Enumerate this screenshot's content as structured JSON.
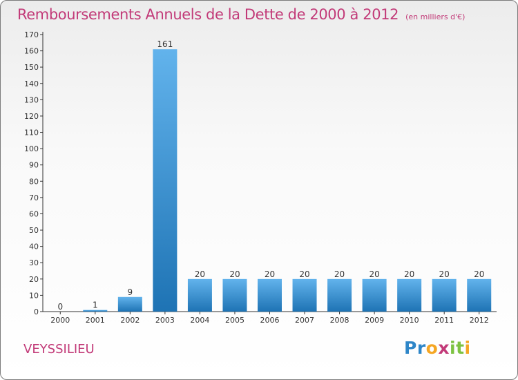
{
  "chart_data": {
    "type": "bar",
    "title": "Remboursements Annuels de la Dette de 2000 à 2012",
    "subtitle": "(en milliers d'€)",
    "categories": [
      "2000",
      "2001",
      "2002",
      "2003",
      "2004",
      "2005",
      "2006",
      "2007",
      "2008",
      "2009",
      "2010",
      "2011",
      "2012"
    ],
    "values": [
      0,
      1,
      9,
      161,
      20,
      20,
      20,
      20,
      20,
      20,
      20,
      20,
      20
    ],
    "data_labels": [
      "0",
      "1",
      "9",
      "161",
      "20",
      "20",
      "20",
      "20",
      "20",
      "20",
      "20",
      "20",
      "20"
    ],
    "ylim": [
      0,
      170
    ],
    "yticks": [
      0,
      10,
      20,
      30,
      40,
      50,
      60,
      70,
      80,
      90,
      100,
      110,
      120,
      130,
      140,
      150,
      160,
      170
    ],
    "grid": false,
    "bar_color": "#2e86c8"
  },
  "commune": "VEYSSILIEU",
  "logo": {
    "letters": [
      "P",
      "r",
      "o",
      "x",
      "i",
      "t",
      "i"
    ],
    "colors": [
      "#2e86c8",
      "#2e86c8",
      "#f5a623",
      "#c23a78",
      "#7dc242",
      "#7dc242",
      "#f5a623"
    ]
  }
}
